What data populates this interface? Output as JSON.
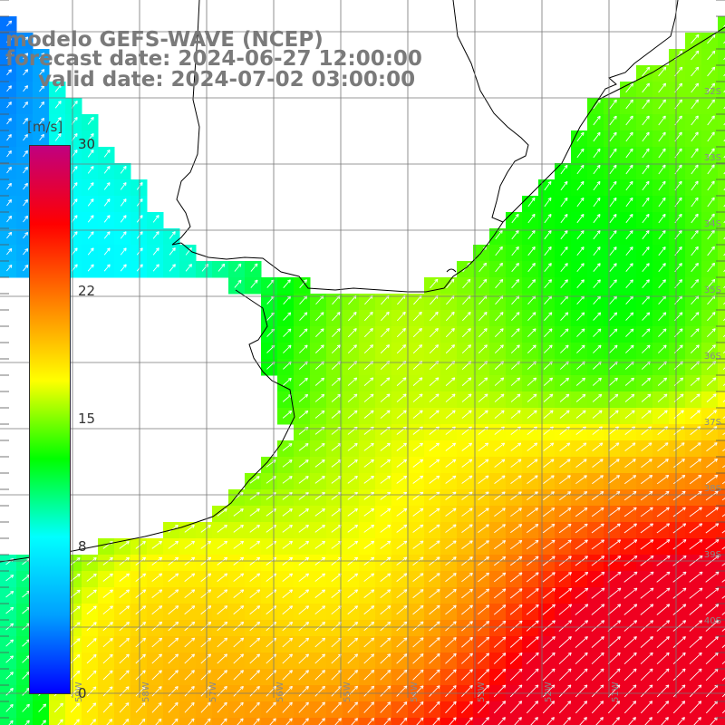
{
  "title": {
    "model": "modelo GEFS-WAVE (NCEP)",
    "forecast_date": "forecast date: 2024-06-27 12:00:00",
    "valid_date": "valid date: 2024-07-02 03:00:00"
  },
  "colorbar": {
    "unit": "[m/s]",
    "ticks": [
      {
        "label": "30",
        "value": 30
      },
      {
        "label": "22",
        "value": 22
      },
      {
        "label": "15",
        "value": 15
      },
      {
        "label": "8",
        "value": 8
      },
      {
        "label": "0",
        "value": 0
      }
    ],
    "min": 0,
    "max": 30,
    "colors": [
      "#0000ff",
      "#00a0ff",
      "#00ffff",
      "#00ff00",
      "#ffff00",
      "#ff8000",
      "#ff0000",
      "#c00080"
    ]
  },
  "map": {
    "lat_labels": [
      "32S",
      "33S",
      "34S",
      "35S",
      "36S",
      "37S",
      "38S",
      "39S",
      "40S"
    ],
    "lon_labels": [
      "59W",
      "58W",
      "57W",
      "56W",
      "55W",
      "54W",
      "53W",
      "52W",
      "51W"
    ],
    "lat_range": [
      -41.5,
      -31.5
    ],
    "lon_range": [
      -60,
      -50
    ],
    "variable": "wind speed",
    "colors": {
      "land": "#ffffff",
      "coast": "#000000",
      "grid": "#777777",
      "arrow": "#ffffff"
    }
  }
}
